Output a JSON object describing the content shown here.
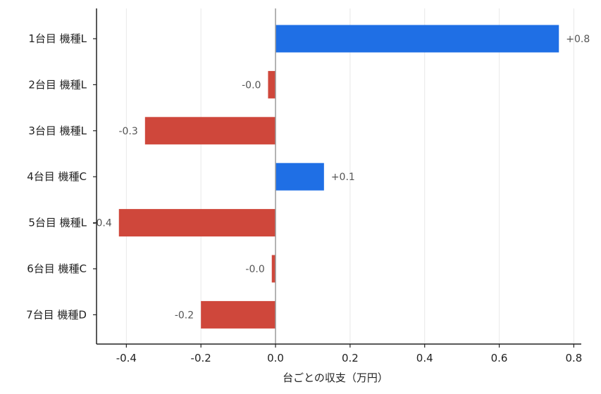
{
  "chart_data": {
    "type": "bar",
    "orientation": "horizontal",
    "categories": [
      "1台目 機種L",
      "2台目 機種L",
      "3台目 機種L",
      "4台目 機種C",
      "5台目 機種L",
      "6台目 機種C",
      "7台目 機種D"
    ],
    "values": [
      0.76,
      -0.02,
      -0.35,
      0.13,
      -0.42,
      -0.01,
      -0.2
    ],
    "value_labels": [
      "+0.8",
      "-0.0",
      "-0.3",
      "+0.1",
      "-0.4",
      "-0.0",
      "-0.2"
    ],
    "xlabel": "台ごとの収支（万円）",
    "ylabel": "",
    "xlim": [
      -0.48,
      0.82
    ],
    "xticks": [
      -0.4,
      -0.2,
      0.0,
      0.2,
      0.4,
      0.6,
      0.8
    ],
    "xtick_labels": [
      "-0.4",
      "-0.2",
      "0.0",
      "0.2",
      "0.4",
      "0.6",
      "0.8"
    ],
    "grid": "vertical",
    "colors": {
      "positive": "#1f6fe5",
      "negative": "#cf473b",
      "zero_line": "#999999",
      "grid": "#e8e8e8",
      "axis": "#222222"
    }
  }
}
